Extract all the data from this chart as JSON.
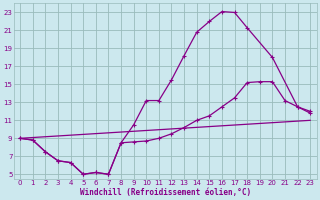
{
  "xlabel": "Windchill (Refroidissement éolien,°C)",
  "bg_color": "#cce8ee",
  "line_color": "#880088",
  "grid_color": "#99bbbb",
  "xlim": [
    -0.5,
    23.5
  ],
  "ylim": [
    4.5,
    24
  ],
  "yticks": [
    5,
    7,
    9,
    11,
    13,
    15,
    17,
    19,
    21,
    23
  ],
  "xticks": [
    0,
    1,
    2,
    3,
    4,
    5,
    6,
    7,
    8,
    9,
    10,
    11,
    12,
    13,
    14,
    15,
    16,
    17,
    18,
    19,
    20,
    21,
    22,
    23
  ],
  "curve1_x": [
    0,
    1,
    2,
    3,
    4,
    5,
    6,
    7,
    8,
    9,
    10,
    11,
    12,
    13,
    14,
    15,
    16,
    17,
    18,
    20,
    22,
    23
  ],
  "curve1_y": [
    9.0,
    8.8,
    7.5,
    6.5,
    6.3,
    5.0,
    5.2,
    5.0,
    8.5,
    10.5,
    13.2,
    13.2,
    15.5,
    18.2,
    20.8,
    22.0,
    23.1,
    23.0,
    21.3,
    18.0,
    12.5,
    11.8
  ],
  "curve2_x": [
    0,
    1,
    2,
    3,
    4,
    5,
    6,
    7,
    8,
    9,
    10,
    11,
    12,
    13,
    14,
    15,
    16,
    17,
    18,
    19,
    20,
    21,
    22,
    23
  ],
  "curve2_y": [
    9.0,
    8.8,
    7.5,
    6.5,
    6.3,
    5.0,
    5.2,
    5.0,
    8.5,
    8.6,
    8.7,
    9.0,
    9.5,
    10.2,
    11.0,
    11.5,
    12.5,
    13.5,
    15.2,
    15.3,
    15.3,
    13.2,
    12.5,
    12.0
  ],
  "line3_x": [
    0,
    23
  ],
  "line3_y": [
    9.0,
    11.0
  ]
}
